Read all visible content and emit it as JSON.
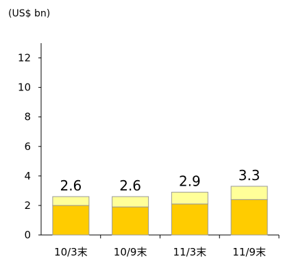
{
  "chart_data": {
    "type": "bar",
    "stacked": true,
    "unit_label": "(US$ bn)",
    "categories": [
      "10/3末",
      "10/9末",
      "11/3末",
      "11/9末"
    ],
    "series": [
      {
        "values": [
          2.0,
          1.9,
          2.1,
          2.4
        ],
        "color": "#FFCC00"
      },
      {
        "values": [
          0.6,
          0.7,
          0.8,
          0.9
        ],
        "color": "#FFFF99"
      }
    ],
    "totals": [
      "2.6",
      "2.6",
      "2.9",
      "3.3"
    ],
    "ylim": [
      0,
      13
    ],
    "yticks": [
      "0",
      "2",
      "4",
      "6",
      "8",
      "10",
      "12"
    ],
    "grid": false,
    "bar_edge_color": "#999999"
  }
}
